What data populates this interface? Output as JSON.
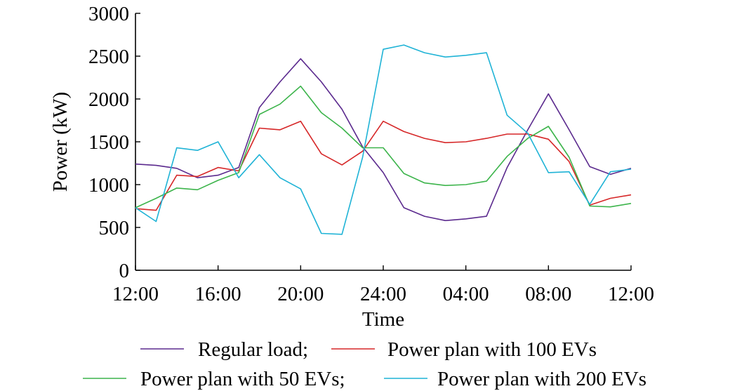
{
  "chart_data": {
    "type": "line",
    "xlabel": "Time",
    "ylabel": "Power (kW)",
    "xlim": [
      0,
      24
    ],
    "ylim": [
      0,
      3000
    ],
    "x_ticks": [
      0,
      4,
      8,
      12,
      16,
      20,
      24
    ],
    "x_tick_labels": [
      "12:00",
      "16:00",
      "20:00",
      "24:00",
      "04:00",
      "08:00",
      "12:00"
    ],
    "y_ticks": [
      0,
      500,
      1000,
      1500,
      2000,
      2500,
      3000
    ],
    "y_tick_labels": [
      "0",
      "500",
      "1000",
      "1500",
      "2000",
      "2500",
      "3000"
    ],
    "grid": false,
    "legend_position": "bottom",
    "x": [
      0,
      1,
      2,
      3,
      4,
      5,
      6,
      7,
      8,
      9,
      10,
      11,
      12,
      13,
      14,
      15,
      16,
      17,
      18,
      19,
      20,
      21,
      22,
      23,
      24
    ],
    "series": [
      {
        "name": "Regular load;",
        "color": "#5b2a8e",
        "values": [
          1240,
          1225,
          1190,
          1080,
          1110,
          1200,
          1900,
          2200,
          2470,
          2200,
          1880,
          1440,
          1140,
          730,
          630,
          580,
          600,
          630,
          1200,
          1640,
          2060,
          1640,
          1210,
          1120,
          1190
        ]
      },
      {
        "name": "Power plan with 100 EVs",
        "color": "#d62728",
        "values": [
          720,
          700,
          1110,
          1095,
          1200,
          1160,
          1660,
          1640,
          1740,
          1360,
          1230,
          1390,
          1740,
          1620,
          1540,
          1490,
          1500,
          1540,
          1590,
          1590,
          1530,
          1270,
          760,
          840,
          880
        ]
      },
      {
        "name": "Power plan with 50 EVs;",
        "color": "#3cb44b",
        "values": [
          730,
          840,
          960,
          940,
          1050,
          1140,
          1820,
          1940,
          2150,
          1840,
          1660,
          1430,
          1430,
          1130,
          1020,
          990,
          1000,
          1040,
          1330,
          1540,
          1680,
          1320,
          750,
          740,
          780
        ]
      },
      {
        "name": "Power plan with 200 EVs",
        "color": "#1fb3d6",
        "values": [
          730,
          570,
          1430,
          1400,
          1500,
          1080,
          1350,
          1080,
          950,
          430,
          420,
          1320,
          2580,
          2630,
          2540,
          2490,
          2510,
          2540,
          1810,
          1600,
          1140,
          1150,
          770,
          1150,
          1180
        ]
      }
    ]
  }
}
